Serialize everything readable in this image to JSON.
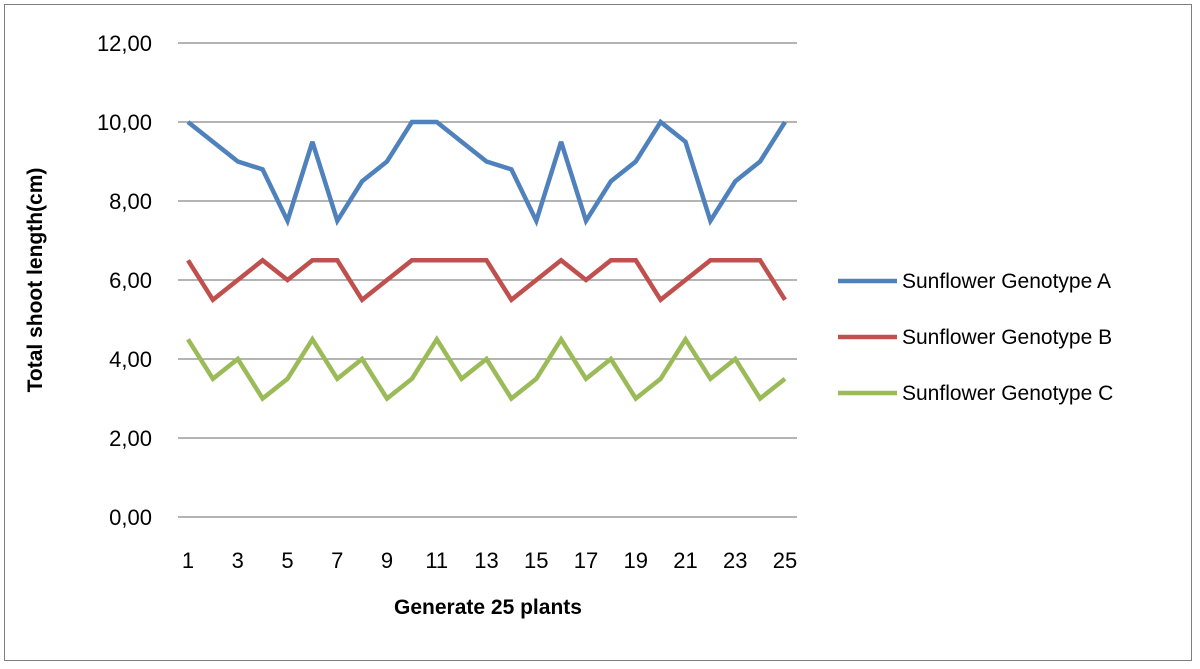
{
  "chart_data": {
    "type": "line",
    "xlabel": "Generate 25 plants",
    "ylabel": "Total shoot length(cm)",
    "ylim": [
      0,
      12
    ],
    "y_ticks": [
      "0,00",
      "2,00",
      "4,00",
      "6,00",
      "8,00",
      "10,00",
      "12,00"
    ],
    "y_tick_values": [
      0,
      2,
      4,
      6,
      8,
      10,
      12
    ],
    "x": [
      1,
      2,
      3,
      4,
      5,
      6,
      7,
      8,
      9,
      10,
      11,
      12,
      13,
      14,
      15,
      16,
      17,
      18,
      19,
      20,
      21,
      22,
      23,
      24,
      25
    ],
    "x_tick_labels": [
      "1",
      "3",
      "5",
      "7",
      "9",
      "11",
      "13",
      "15",
      "17",
      "19",
      "21",
      "23",
      "25"
    ],
    "grid": "horizontal",
    "legend_position": "right",
    "series": [
      {
        "name": "Sunflower Genotype A",
        "color": "#4f81bd",
        "values": [
          10,
          9.5,
          9,
          8.8,
          7.5,
          9.5,
          7.5,
          8.5,
          9,
          10,
          10,
          9.5,
          9,
          8.8,
          7.5,
          9.5,
          7.5,
          8.5,
          9,
          10,
          9.5,
          7.5,
          8.5,
          9,
          10
        ]
      },
      {
        "name": "Sunflower Genotype B",
        "color": "#c0504d",
        "values": [
          6.5,
          5.5,
          6,
          6.5,
          6,
          6.5,
          6.5,
          5.5,
          6,
          6.5,
          6.5,
          6.5,
          6.5,
          5.5,
          6,
          6.5,
          6,
          6.5,
          6.5,
          5.5,
          6,
          6.5,
          6.5,
          6.5,
          5.5
        ]
      },
      {
        "name": "Sunflower Genotype C",
        "color": "#9bbb59",
        "values": [
          4.5,
          3.5,
          4,
          3,
          3.5,
          4.5,
          3.5,
          4,
          3,
          3.5,
          4.5,
          3.5,
          4,
          3,
          3.5,
          4.5,
          3.5,
          4,
          3,
          3.5,
          4.5,
          3.5,
          4,
          3,
          3.5
        ]
      }
    ]
  }
}
